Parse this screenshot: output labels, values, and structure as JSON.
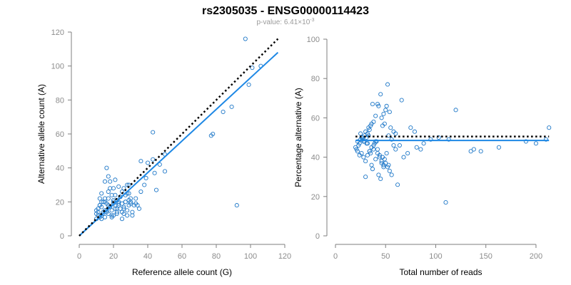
{
  "title": "rs2305035 - ENSG00000114423",
  "subtitle": {
    "prefix": "p-value: 6.41×10",
    "exponent": "-3"
  },
  "colors": {
    "points": "#1f78c8",
    "fit_line": "#1e88e5",
    "reference_line": "#000000",
    "axis": "#7f7f7f"
  },
  "chart_data": [
    {
      "type": "scatter",
      "xlabel": "Reference allele count (G)",
      "ylabel": "Alternative allele count (A)",
      "xlim": [
        0,
        120
      ],
      "ylim": [
        0,
        120
      ],
      "xticks": [
        0,
        20,
        40,
        60,
        80,
        100,
        120
      ],
      "yticks": [
        0,
        20,
        40,
        60,
        80,
        100,
        120
      ],
      "grid": false,
      "reference_line": {
        "style": "dotted",
        "color": "#000000",
        "x": [
          0,
          116
        ],
        "y": [
          0,
          116
        ]
      },
      "fit_line": {
        "style": "solid",
        "color": "#1e88e5",
        "x": [
          0,
          116
        ],
        "y": [
          0,
          108
        ]
      },
      "x": [
        97,
        101,
        106,
        99,
        89,
        43,
        77,
        78,
        84,
        92,
        50,
        40,
        44,
        50,
        47,
        45,
        36,
        39,
        43,
        38,
        36,
        33,
        29,
        26,
        21,
        29,
        23,
        25,
        16,
        15,
        18,
        20,
        13,
        12,
        19,
        14,
        17,
        20,
        23,
        26,
        27,
        29,
        30,
        32,
        34,
        31,
        28,
        25,
        22,
        19,
        17,
        15,
        13,
        11,
        10,
        10,
        11,
        12,
        13,
        14,
        15,
        16,
        17,
        18,
        19,
        20,
        21,
        22,
        23,
        24,
        25,
        26,
        27,
        28,
        29,
        30,
        31,
        33,
        35,
        12,
        14,
        16,
        18,
        20,
        22,
        24,
        26,
        28,
        30,
        11,
        13,
        15,
        17,
        19,
        21,
        23,
        25,
        27,
        12,
        16,
        20,
        24,
        28,
        18,
        21,
        10,
        13,
        15,
        22,
        17
      ],
      "y": [
        116,
        99,
        100,
        89,
        76,
        61,
        59,
        60,
        73,
        18,
        38,
        43,
        37,
        48,
        42,
        27,
        44,
        34,
        45,
        30,
        26,
        22,
        30,
        28,
        33,
        25,
        29,
        26,
        40,
        32,
        32,
        28,
        25,
        22,
        24,
        20,
        18,
        20,
        18,
        16,
        20,
        21,
        19,
        18,
        18,
        14,
        12,
        10,
        14,
        12,
        13,
        11,
        12,
        14,
        10,
        13,
        16,
        18,
        20,
        14,
        15,
        19,
        22,
        17,
        15,
        21,
        18,
        16,
        19,
        23,
        14,
        17,
        20,
        25,
        18,
        22,
        12,
        19,
        16,
        11,
        13,
        15,
        17,
        19,
        21,
        23,
        13,
        15,
        20,
        12,
        17,
        22,
        26,
        11,
        16,
        20,
        19,
        24,
        18,
        14,
        12,
        16,
        30,
        28,
        24,
        15,
        10,
        20,
        13,
        35
      ]
    },
    {
      "type": "scatter",
      "xlabel": "Total number of reads",
      "ylabel": "Percentage alternative (A)",
      "xlim": [
        0,
        210
      ],
      "ylim": [
        0,
        100
      ],
      "xticks": [
        0,
        50,
        100,
        150,
        200
      ],
      "yticks": [
        0,
        20,
        40,
        60,
        80,
        100
      ],
      "grid": false,
      "reference_line": {
        "style": "dotted",
        "color": "#000000",
        "x": [
          20,
          213
        ],
        "y": [
          50.5,
          50.5
        ]
      },
      "fit_line": {
        "style": "solid",
        "color": "#1e88e5",
        "x": [
          20,
          213
        ],
        "y": [
          48.5,
          48.5
        ]
      },
      "x": [
        52,
        45,
        66,
        51,
        43,
        50,
        54,
        48,
        46,
        37,
        42,
        40,
        49,
        47,
        55,
        58,
        53,
        38,
        36,
        35,
        34,
        33,
        32,
        31,
        30,
        29,
        28,
        27,
        26,
        25,
        24,
        23,
        22,
        21,
        20,
        22,
        24,
        26,
        28,
        30,
        32,
        34,
        36,
        38,
        40,
        42,
        44,
        46,
        48,
        50,
        52,
        54,
        56,
        58,
        60,
        35,
        37,
        39,
        41,
        43,
        45,
        47,
        49,
        51,
        53,
        30,
        32,
        34,
        36,
        38,
        40,
        42,
        44,
        46,
        48,
        25,
        27,
        29,
        31,
        33,
        62,
        64,
        68,
        72,
        75,
        79,
        81,
        85,
        88,
        95,
        103,
        110,
        113,
        120,
        135,
        138,
        145,
        163,
        190,
        200,
        210,
        213,
        60,
        56
      ],
      "y": [
        77,
        72,
        69,
        66,
        66,
        64,
        63,
        62,
        60,
        67,
        67,
        61,
        57,
        56,
        55,
        53,
        51,
        58,
        57,
        56,
        54,
        55,
        52,
        50,
        53,
        51,
        48,
        49,
        50,
        52,
        47,
        46,
        48,
        44,
        45,
        43,
        41,
        42,
        40,
        38,
        41,
        43,
        45,
        44,
        39,
        42,
        40,
        38,
        36,
        37,
        35,
        33,
        31,
        46,
        44,
        42,
        34,
        47,
        48,
        31,
        29,
        40,
        39,
        42,
        36,
        30,
        47,
        43,
        36,
        46,
        48,
        44,
        41,
        37,
        35,
        49,
        50,
        48,
        47,
        51,
        26,
        46,
        40,
        42,
        55,
        53,
        45,
        44,
        47,
        49,
        50,
        17,
        49,
        64,
        43,
        44,
        43,
        45,
        48,
        47,
        49,
        55,
        52,
        49
      ]
    }
  ]
}
